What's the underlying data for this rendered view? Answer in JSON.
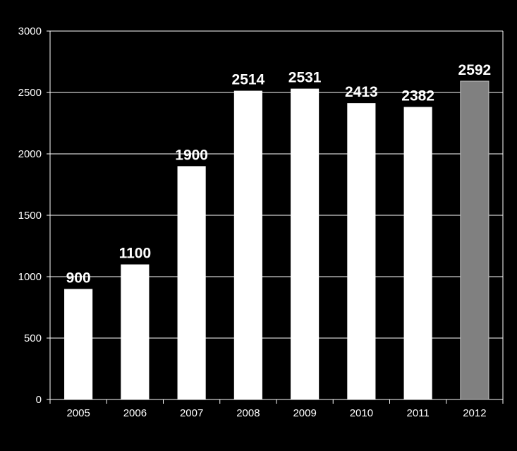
{
  "chart_data": {
    "type": "bar",
    "categories": [
      "2005",
      "2006",
      "2007",
      "2008",
      "2009",
      "2010",
      "2011",
      "2012"
    ],
    "values": [
      900,
      1100,
      1900,
      2514,
      2531,
      2413,
      2382,
      2592
    ],
    "data_labels": [
      "900",
      "1100",
      "1900",
      "2514",
      "2531",
      "2413",
      "2382",
      "2592"
    ],
    "ylim": [
      0,
      3000
    ],
    "yticks": [
      0,
      500,
      1000,
      1500,
      2000,
      2500,
      3000
    ],
    "ytick_labels": [
      "0",
      "500",
      "1000",
      "1500",
      "2000",
      "2500",
      "3000"
    ],
    "grid": true,
    "legend": "none",
    "title": "",
    "xlabel": "",
    "ylabel": "",
    "colors": {
      "background": "#000000",
      "bar": "#ffffff",
      "highlight_bar": "#808080",
      "highlight_index": 7,
      "grid": "#ffffff",
      "text": "#ffffff"
    }
  }
}
